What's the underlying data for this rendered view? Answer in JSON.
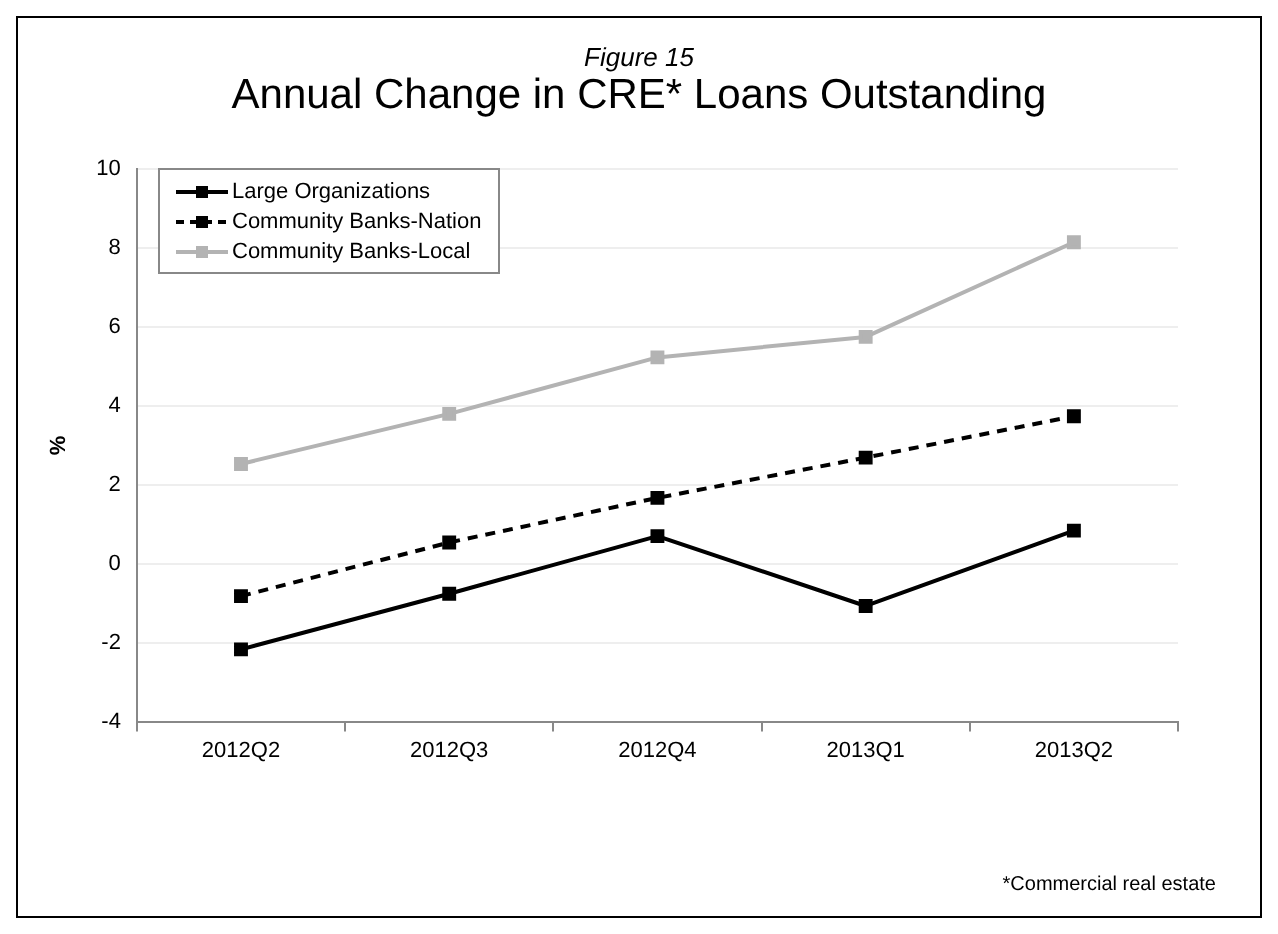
{
  "chart_data": {
    "type": "line",
    "subtitle": "Figure 15",
    "title": "Annual Change in CRE* Loans Outstanding",
    "ylabel": "%",
    "categories": [
      "2012Q2",
      "2012Q3",
      "2012Q4",
      "2013Q1",
      "2013Q2"
    ],
    "series": [
      {
        "name": "Large Organizations",
        "color": "#000000",
        "line_style": "solid",
        "values": [
          -2.17,
          -0.76,
          0.7,
          -1.07,
          0.84
        ]
      },
      {
        "name": "Community Banks-Nation",
        "color": "#000000",
        "line_style": "dashed",
        "values": [
          -0.82,
          0.54,
          1.67,
          2.69,
          3.74
        ]
      },
      {
        "name": "Community Banks-Local",
        "color": "#b3b3b3",
        "line_style": "solid",
        "values": [
          2.53,
          3.8,
          5.23,
          5.75,
          8.15
        ]
      }
    ],
    "ylim": [
      -4,
      10
    ],
    "yticks": [
      -4,
      -2,
      0,
      2,
      4,
      6,
      8,
      10
    ],
    "grid": "y",
    "legend": "top left",
    "marker": "square",
    "annotations": [
      "*Commercial real estate"
    ]
  }
}
